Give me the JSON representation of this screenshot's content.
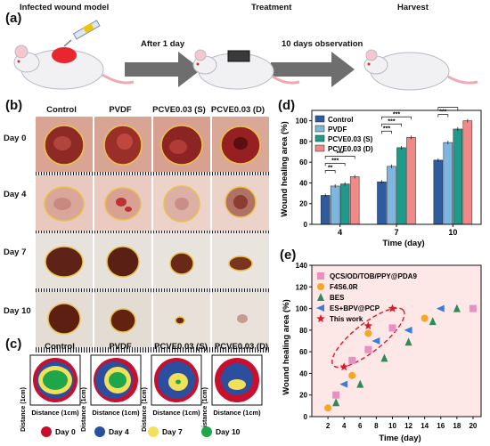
{
  "panel_a": {
    "label": "(a)",
    "captions": {
      "model": "Infected wound model",
      "treatment": "Treatment",
      "harvest": "Harvest",
      "after": "After 1 day",
      "observe": "10 days observation"
    }
  },
  "panel_b": {
    "label": "(b)",
    "columns": [
      "Control",
      "PVDF",
      "PCVE0.03 (S)",
      "PCVE0.03 (D)"
    ],
    "rows": [
      "Day 0",
      "Day 4",
      "Day 7",
      "Day 10"
    ]
  },
  "panel_c": {
    "label": "(c)",
    "columns": [
      "Control",
      "PVDF",
      "PCVE0.03 (S)",
      "PCVE0.03 (D)"
    ],
    "ylabel": "Distance (1cm)",
    "xlabel": "Distance (1cm)",
    "legend": [
      {
        "label": "Day 0",
        "color": "#c8102e"
      },
      {
        "label": "Day 4",
        "color": "#2b4f9e"
      },
      {
        "label": "Day 7",
        "color": "#f3e05a"
      },
      {
        "label": "Day 10",
        "color": "#1fa64a"
      }
    ]
  },
  "chart_data": [
    {
      "panel": "(d)",
      "type": "bar",
      "xlabel": "Time (day)",
      "ylabel": "Wound healing area (%)",
      "categories": [
        "4",
        "7",
        "10"
      ],
      "ylim": [
        0,
        110
      ],
      "series": [
        {
          "name": "Control",
          "color": "#2e5c9e",
          "values": [
            28,
            41,
            62
          ]
        },
        {
          "name": "PVDF",
          "color": "#7fb6e0",
          "values": [
            37,
            56,
            79
          ]
        },
        {
          "name": "PCVE0.03 (S)",
          "color": "#1f9a8a",
          "values": [
            39,
            74,
            92
          ]
        },
        {
          "name": "PCVE0.03 (D)",
          "color": "#f08a88",
          "values": [
            46,
            84,
            100
          ]
        }
      ],
      "significance": [
        "**",
        "***",
        "***",
        "***",
        "***",
        "***",
        "***",
        "***",
        "***"
      ]
    },
    {
      "panel": "(e)",
      "type": "scatter",
      "xlabel": "Time (day)",
      "ylabel": "Wound healing area (%)",
      "xlim": [
        0,
        21
      ],
      "ylim": [
        0,
        140
      ],
      "xticks": [
        2,
        4,
        6,
        8,
        10,
        12,
        14,
        16,
        18,
        20
      ],
      "yticks": [
        0,
        20,
        40,
        60,
        80,
        100,
        120,
        140
      ],
      "series": [
        {
          "name": "QCS/OD/TOB/PPY@PDA9",
          "marker": "square",
          "color": "#e891c0",
          "points": [
            [
              3,
              20
            ],
            [
              5,
              52
            ],
            [
              7,
              62
            ],
            [
              10,
              82
            ],
            [
              20,
              100
            ]
          ]
        },
        {
          "name": "F4S6.0R",
          "marker": "circle",
          "color": "#f5a623",
          "points": [
            [
              2,
              8
            ],
            [
              5,
              38
            ],
            [
              7,
              77
            ],
            [
              14,
              91
            ]
          ]
        },
        {
          "name": "BES",
          "marker": "triangle-up",
          "color": "#2e8b57",
          "points": [
            [
              3,
              13
            ],
            [
              6,
              30
            ],
            [
              9,
              54
            ],
            [
              12,
              69
            ],
            [
              15,
              88
            ],
            [
              18,
              100
            ]
          ]
        },
        {
          "name": "ES+BPV@PCP",
          "marker": "triangle-left",
          "color": "#3a7dd8",
          "points": [
            [
              4,
              30
            ],
            [
              8,
              70
            ],
            [
              12,
              80
            ],
            [
              16,
              100
            ]
          ]
        },
        {
          "name": "This work",
          "marker": "star",
          "color": "#d81e2a",
          "points": [
            [
              4,
              46
            ],
            [
              7,
              84
            ],
            [
              10,
              100
            ]
          ]
        }
      ]
    }
  ]
}
